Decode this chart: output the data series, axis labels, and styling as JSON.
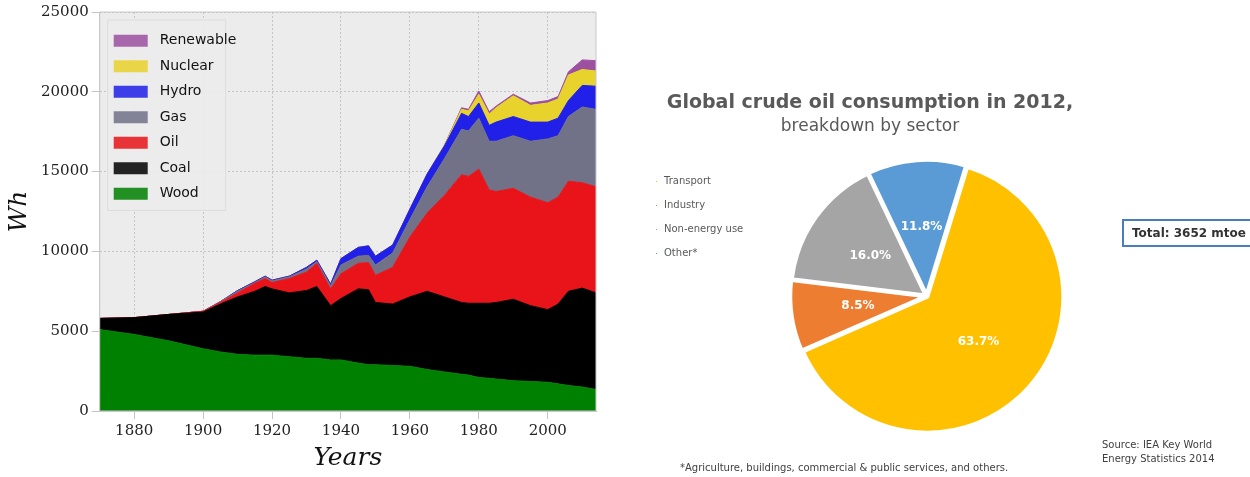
{
  "chart_data": [
    {
      "type": "area",
      "xlabel": "Years",
      "ylabel": "Wh",
      "stacked": true,
      "x": [
        1870,
        1880,
        1890,
        1900,
        1905,
        1910,
        1915,
        1918,
        1920,
        1925,
        1930,
        1933,
        1937,
        1940,
        1945,
        1948,
        1950,
        1955,
        1960,
        1965,
        1970,
        1975,
        1977,
        1980,
        1983,
        1985,
        1990,
        1995,
        2000,
        2003,
        2006,
        2010,
        2014
      ],
      "series": [
        {
          "name": "Wood",
          "color": "#008000",
          "values": [
            5100,
            4800,
            4400,
            3900,
            3700,
            3550,
            3500,
            3500,
            3500,
            3400,
            3300,
            3300,
            3200,
            3200,
            3000,
            2900,
            2900,
            2850,
            2800,
            2600,
            2450,
            2300,
            2250,
            2100,
            2050,
            2000,
            1900,
            1850,
            1800,
            1700,
            1600,
            1500,
            1350
          ]
        },
        {
          "name": "Coal",
          "color": "#000000",
          "values": [
            700,
            1050,
            1650,
            2300,
            3000,
            3600,
            4000,
            4300,
            4150,
            4000,
            4250,
            4500,
            3400,
            3850,
            4650,
            4700,
            3900,
            3850,
            4350,
            4900,
            4700,
            4500,
            4500,
            4650,
            4700,
            4800,
            5100,
            4750,
            4550,
            5000,
            5900,
            6200,
            6050
          ]
        },
        {
          "name": "Oil",
          "color": "#e8141a",
          "values": [
            0,
            0,
            0,
            50,
            100,
            250,
            500,
            500,
            400,
            900,
            1150,
            1450,
            1050,
            1550,
            1600,
            1700,
            1700,
            2300,
            3750,
            4900,
            6350,
            8000,
            7950,
            8400,
            7100,
            6950,
            6950,
            6800,
            6700,
            6700,
            6900,
            6600,
            6650
          ]
        },
        {
          "name": "Gas",
          "color": "#717188",
          "values": [
            0,
            0,
            0,
            0,
            50,
            100,
            50,
            100,
            100,
            100,
            200,
            100,
            200,
            550,
            450,
            450,
            650,
            900,
            1100,
            1650,
            2300,
            2850,
            2850,
            3200,
            3050,
            3150,
            3300,
            3500,
            4000,
            3850,
            4050,
            4750,
            4850
          ]
        },
        {
          "name": "Hydro",
          "color": "#2020e8",
          "values": [
            0,
            0,
            0,
            0,
            0,
            50,
            50,
            50,
            50,
            50,
            100,
            100,
            100,
            400,
            550,
            600,
            550,
            500,
            650,
            800,
            800,
            1000,
            900,
            950,
            1000,
            1200,
            1200,
            1200,
            1050,
            1100,
            1000,
            1350,
            1450
          ]
        },
        {
          "name": "Nuclear",
          "color": "#e8d22c",
          "values": [
            0,
            0,
            0,
            0,
            0,
            0,
            0,
            0,
            0,
            0,
            0,
            0,
            0,
            0,
            0,
            0,
            0,
            0,
            0,
            0,
            50,
            250,
            350,
            550,
            700,
            900,
            1300,
            1050,
            1200,
            1200,
            1600,
            1000,
            950
          ]
        },
        {
          "name": "Renewable",
          "color": "#9e50a0",
          "values": [
            0,
            0,
            0,
            0,
            0,
            0,
            0,
            0,
            0,
            0,
            0,
            0,
            0,
            0,
            0,
            0,
            0,
            0,
            0,
            0,
            0,
            100,
            100,
            200,
            150,
            100,
            100,
            150,
            150,
            150,
            200,
            600,
            650
          ]
        }
      ],
      "xlim": [
        1870,
        2014
      ],
      "xticks": [
        1880,
        1900,
        1920,
        1940,
        1960,
        1980,
        2000
      ],
      "ylim": [
        0,
        25000
      ],
      "yticks": [
        0,
        5000,
        10000,
        15000,
        20000,
        25000
      ],
      "grid": true,
      "legend": "top left",
      "marker": "none"
    },
    {
      "type": "pie",
      "title": "Global crude oil consumption in 2012,",
      "subtitle": "breakdown by sector",
      "categories": [
        "Transport",
        "Industry",
        "Non-energy use",
        "Other*"
      ],
      "values": [
        63.7,
        8.5,
        16.0,
        11.8
      ],
      "colors": [
        "#ffc000",
        "#ed7d31",
        "#a5a5a5",
        "#5b9bd5"
      ],
      "value_labels": [
        "63.7%",
        "8.5%",
        "16.0%",
        "11.8%"
      ],
      "legend": "left",
      "annotations": [
        "Total: 3652 mtoe",
        "*Agriculture, buildings, commercial & public services, and others.",
        "Source: IEA Key World Energy Statistics 2014"
      ]
    }
  ]
}
